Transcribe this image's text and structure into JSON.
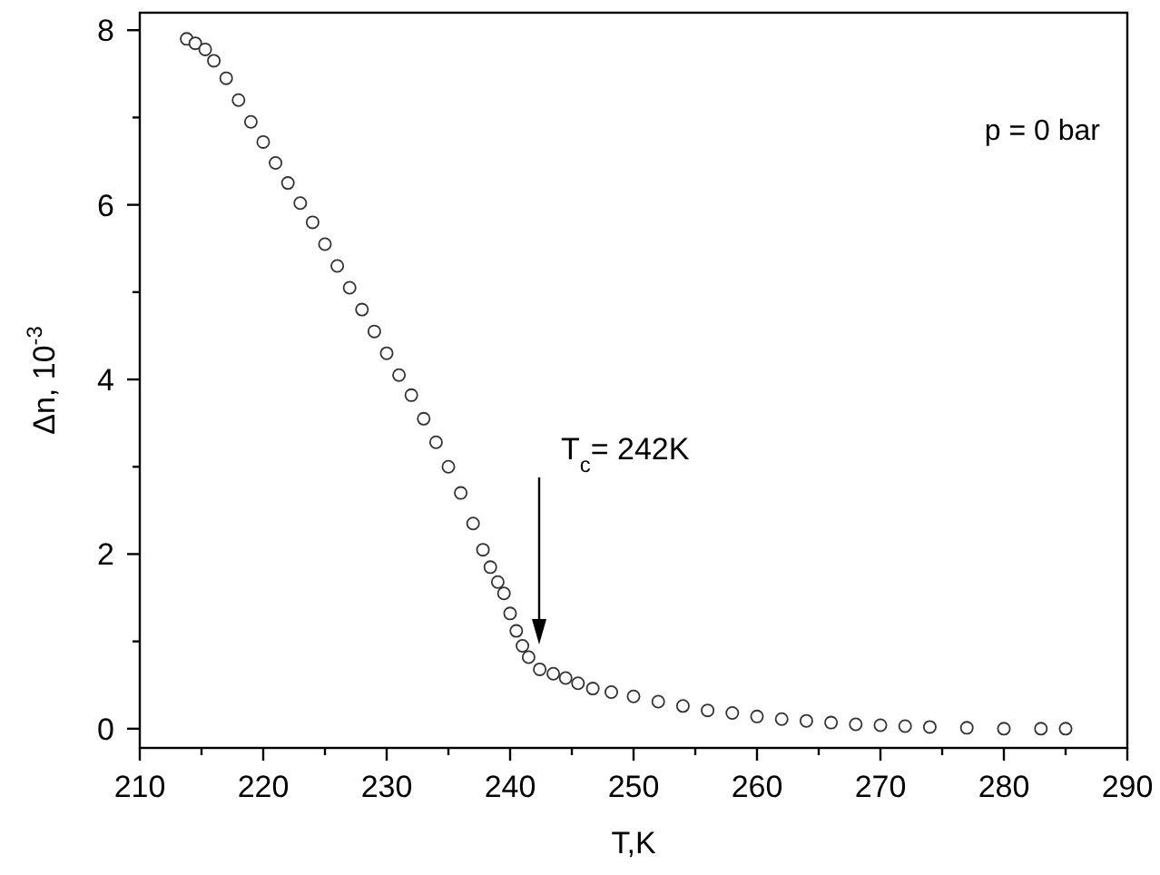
{
  "chart_data": {
    "type": "scatter",
    "xlabel": "T,K",
    "ylabel": "Δn, 10$^{-3}$",
    "xlim": [
      210,
      290
    ],
    "ylim": [
      -0.22,
      8.2
    ],
    "xticks": [
      210,
      {
        "value": 215,
        "label": null
      },
      220,
      {
        "value": 225,
        "label": null
      },
      230,
      {
        "value": 235,
        "label": null
      },
      240,
      {
        "value": 245,
        "label": null
      },
      250,
      {
        "value": 255,
        "label": null
      },
      260,
      {
        "value": 265,
        "label": null
      },
      270,
      {
        "value": 275,
        "label": null
      },
      280,
      {
        "value": 285,
        "label": null
      },
      290
    ],
    "yticks": [
      0,
      {
        "value": 1,
        "label": null
      },
      2,
      {
        "value": 3,
        "label": null
      },
      4,
      {
        "value": 5,
        "label": null
      },
      6,
      {
        "value": 7,
        "label": null
      },
      8
    ],
    "marker": "circle",
    "grid": false,
    "series": [
      {
        "color": "#333333",
        "x": [
          213.8,
          214.5,
          215.3,
          216,
          217,
          218,
          219,
          220,
          221,
          222,
          223,
          224,
          225,
          226,
          227,
          228,
          229,
          230,
          231,
          232,
          233,
          234,
          235,
          236,
          237,
          237.8,
          238.4,
          239,
          239.5,
          240,
          240.5,
          241,
          241.5,
          242.4,
          243.5,
          244.5,
          245.5,
          246.7,
          248.2,
          250,
          252,
          254,
          256,
          258,
          260,
          262,
          264,
          266,
          268,
          270,
          272,
          274,
          277,
          280,
          283,
          285
        ],
        "values": [
          7.9,
          7.85,
          7.78,
          7.65,
          7.45,
          7.2,
          6.95,
          6.72,
          6.48,
          6.25,
          6.02,
          5.8,
          5.55,
          5.3,
          5.05,
          4.8,
          4.55,
          4.3,
          4.05,
          3.82,
          3.55,
          3.28,
          3.0,
          2.7,
          2.35,
          2.05,
          1.85,
          1.68,
          1.55,
          1.32,
          1.12,
          0.95,
          0.82,
          0.68,
          0.63,
          0.58,
          0.52,
          0.46,
          0.42,
          0.37,
          0.31,
          0.26,
          0.21,
          0.18,
          0.14,
          0.11,
          0.09,
          0.07,
          0.05,
          0.04,
          0.03,
          0.02,
          0.01,
          0,
          0,
          0
        ]
      }
    ],
    "annotations": [
      "p = 0 bar",
      "T$_{c}$= 242K"
    ]
  }
}
